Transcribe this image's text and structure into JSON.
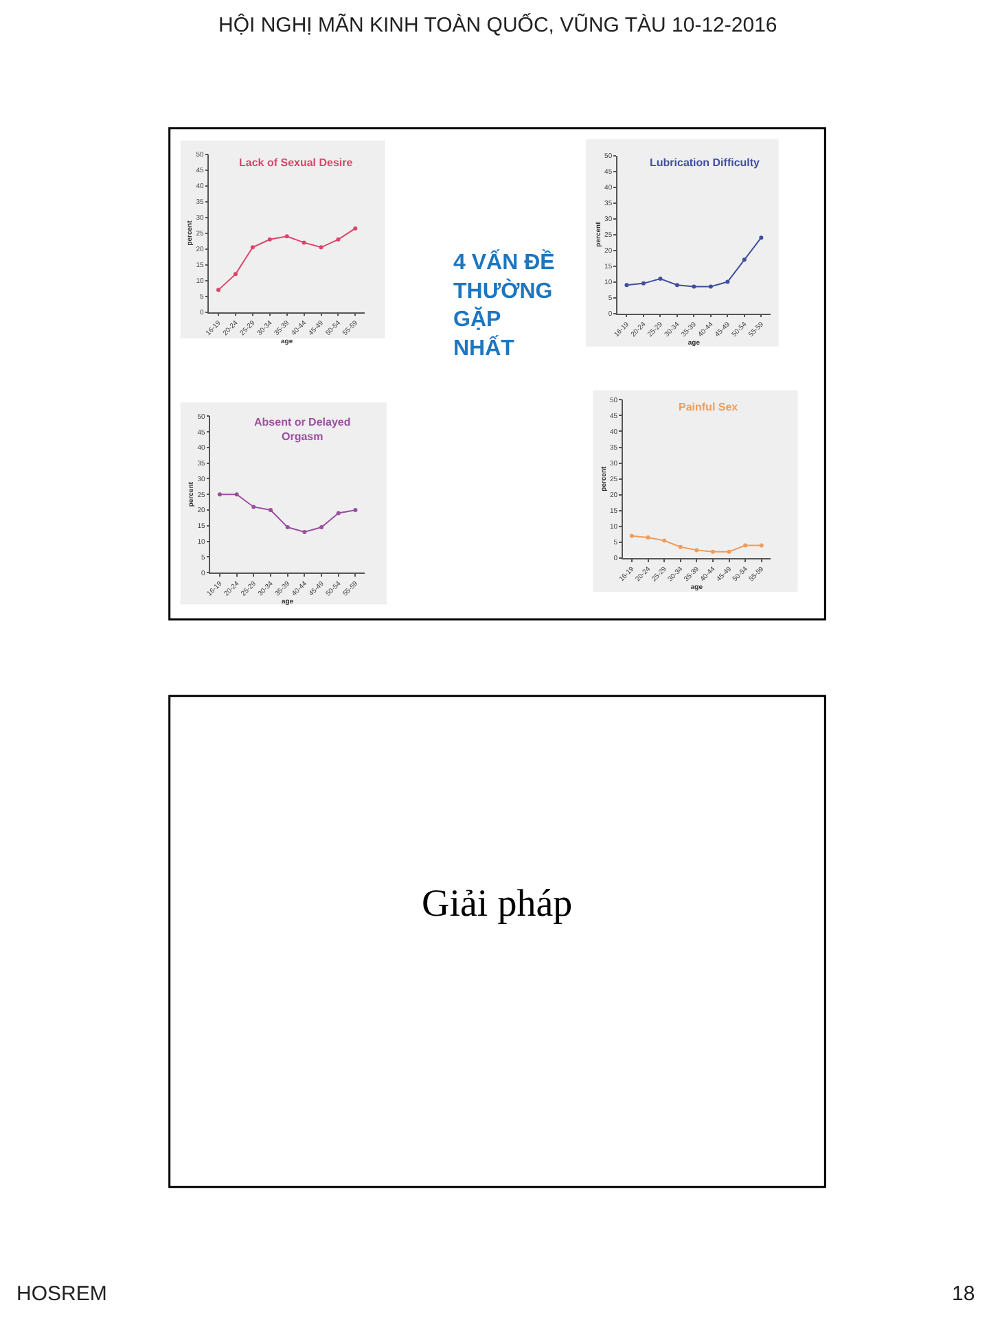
{
  "chart_data": [
    {
      "type": "line",
      "title": "Lack of Sexual Desire",
      "xlabel": "age",
      "ylabel": "percent",
      "categories": [
        "16-19",
        "20-24",
        "25-29",
        "30-34",
        "35-39",
        "40-44",
        "45-49",
        "50-54",
        "55-59"
      ],
      "series": [
        {
          "color": "#d9466a",
          "values": [
            7,
            12,
            20.5,
            23,
            24,
            22,
            20.5,
            23,
            26.5
          ]
        }
      ],
      "ylim": [
        0,
        50
      ],
      "yticks": [
        0,
        5,
        10,
        15,
        20,
        25,
        30,
        35,
        40,
        45,
        50
      ],
      "marker": "circle",
      "line_style": "solid"
    },
    {
      "type": "line",
      "title": "Lubrication Difficulty",
      "xlabel": "age",
      "ylabel": "percent",
      "categories": [
        "16-19",
        "20-24",
        "25-29",
        "30-34",
        "35-39",
        "40-44",
        "45-49",
        "50-54",
        "55-59"
      ],
      "series": [
        {
          "color": "#3f4e9e",
          "values": [
            9,
            9.5,
            11,
            9,
            8.5,
            8.5,
            10,
            17,
            24
          ]
        }
      ],
      "ylim": [
        0,
        50
      ],
      "yticks": [
        0,
        5,
        10,
        15,
        20,
        25,
        30,
        35,
        40,
        45,
        50
      ],
      "marker": "circle",
      "line_style": "solid"
    },
    {
      "type": "line",
      "title": "Absent or Delayed Orgasm",
      "xlabel": "age",
      "ylabel": "percent",
      "categories": [
        "16-19",
        "20-24",
        "25-29",
        "30-34",
        "35-39",
        "40-44",
        "45-49",
        "50-54",
        "55-59"
      ],
      "series": [
        {
          "color": "#9a4f9f",
          "values": [
            25,
            25,
            21,
            20,
            14.5,
            13,
            14.5,
            19,
            20
          ]
        }
      ],
      "ylim": [
        0,
        50
      ],
      "yticks": [
        0,
        5,
        10,
        15,
        20,
        25,
        30,
        35,
        40,
        45,
        50
      ],
      "marker": "circle",
      "line_style": "solid"
    },
    {
      "type": "line",
      "title": "Painful Sex",
      "xlabel": "age",
      "ylabel": "percent",
      "categories": [
        "16-19",
        "20-24",
        "25-29",
        "30-34",
        "35-39",
        "40-44",
        "45-49",
        "50-54",
        "55-59"
      ],
      "series": [
        {
          "color": "#ee9d5c",
          "values": [
            7,
            6.5,
            5.5,
            3.5,
            2.5,
            2,
            2,
            4,
            4
          ]
        }
      ],
      "ylim": [
        0,
        50
      ],
      "yticks": [
        0,
        5,
        10,
        15,
        20,
        25,
        30,
        35,
        40,
        45,
        50
      ],
      "marker": "circle",
      "line_style": "solid"
    },
    {
      "type": "other",
      "title": "4 VẤN ĐỀ THƯỜNG GẶP NHẤT",
      "annotations": [
        "HỘI NGHỊ MÃN KINH TOÀN QUỐC, VŨNG TÀU 10-12-2016",
        "Giải pháp",
        "HOSREM",
        "18"
      ]
    }
  ]
}
